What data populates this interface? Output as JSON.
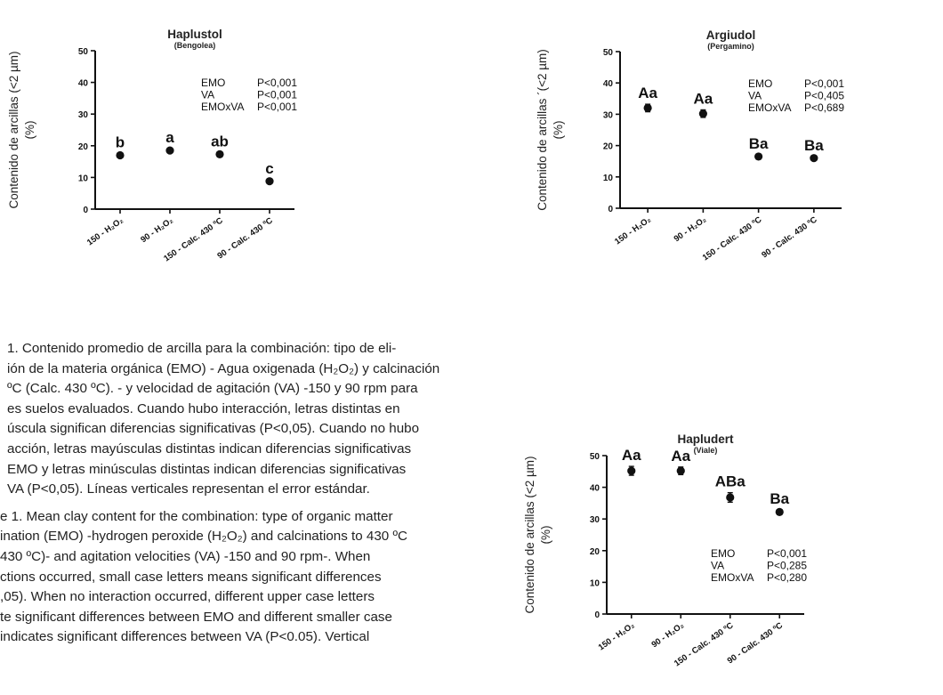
{
  "y_axis_label_line1": "Contenido de arcillas (<2 µm)",
  "y_axis_label_line1_alt": "Contenido de arcillas ´(<2 µm)",
  "y_axis_label_line2": "(%)",
  "caption": {
    "es_lines": [
      "1. Contenido promedio de arcilla para la combinación: tipo de eli-",
      "ión de la materia orgánica (EMO) - Agua oxigenada (H₂O₂) y calcinación",
      "ºC (Calc. 430 ºC). - y velocidad de agitación (VA) -150 y 90 rpm para",
      "es suelos evaluados. Cuando hubo interacción, letras distintas en",
      "úscula significan diferencias significativas (P<0,05). Cuando no hubo",
      "acción, letras mayúsculas distintas indican diferencias significativas",
      "EMO y letras minúsculas distintas indican diferencias significativas",
      "VA (P<0,05). Líneas verticales representan el error estándar."
    ],
    "en_lines": [
      "e 1. Mean clay content for the combination: type of organic matter",
      "ination (EMO) -hydrogen peroxide (H₂O₂) and calcinations to 430 ºC",
      "430 ºC)- and agitation velocities (VA) -150 and 90 rpm-. When",
      "ctions occurred, small case letters means significant differences",
      ",05). When no interaction occurred, different upper case letters",
      "te significant differences between EMO and different smaller case",
      "indicates significant differences between VA (P<0.05). Vertical"
    ]
  },
  "chart_data": [
    {
      "type": "scatter",
      "title": "Haplustol",
      "subtitle": "(Bengolea)",
      "categories": [
        "150 - H₂O₂",
        "90 - H₂O₂",
        "150 - Calc. 430 ºC",
        "90 - Calc. 430 ºC"
      ],
      "values": [
        17,
        18.5,
        17.3,
        8.8
      ],
      "errors": [
        0.6,
        0.6,
        0.6,
        0.5
      ],
      "point_labels": [
        "b",
        "a",
        "ab",
        "c"
      ],
      "ylim": [
        0,
        50
      ],
      "yticks": [
        0,
        10,
        20,
        30,
        40,
        50
      ],
      "stats": [
        [
          "EMO",
          "P<0,001"
        ],
        [
          "VA",
          "P<0,001"
        ],
        [
          "EMOxVA",
          "P<0,001"
        ]
      ]
    },
    {
      "type": "scatter",
      "title": "Argiudol",
      "subtitle": "(Pergamino)",
      "categories": [
        "150 - H₂O₂",
        "90 - H₂O₂",
        "150 - Calc. 430 ºC",
        "90 - Calc. 430 ºC"
      ],
      "values": [
        32,
        30.2,
        16.5,
        16
      ],
      "errors": [
        1.2,
        1.2,
        0.6,
        0.5
      ],
      "point_labels": [
        "Aa",
        "Aa",
        "Ba",
        "Ba"
      ],
      "ylim": [
        0,
        50
      ],
      "yticks": [
        "0",
        "10",
        "20",
        "30",
        "40",
        "50"
      ],
      "ytick_labels": [
        "0",
        "10",
        "20",
        "30",
        "40",
        "50"
      ],
      "stats": [
        [
          "EMO",
          "P<0,001"
        ],
        [
          "VA",
          "P<0,405"
        ],
        [
          "EMOxVA",
          "P<0,689"
        ]
      ]
    },
    {
      "type": "scatter",
      "title": "Hapludert",
      "subtitle": "(Viale)",
      "categories": [
        "150 - H₂O₂",
        "90 - H₂O₂",
        "150 - Calc. 430 ºC",
        "90 - Calc. 430 ºC"
      ],
      "values": [
        45.2,
        45.2,
        36.8,
        32.2
      ],
      "errors": [
        1.4,
        1.2,
        1.5,
        0.6
      ],
      "point_labels": [
        "Aa",
        "Aa",
        "ABa",
        "Ba"
      ],
      "ylim": [
        0,
        50
      ],
      "yticks": [
        0,
        10,
        20,
        30,
        40,
        50
      ],
      "stats": [
        [
          "EMO",
          "P<0,001"
        ],
        [
          "VA",
          "P<0,285"
        ],
        [
          "EMOxVA",
          "P<0,280"
        ]
      ]
    }
  ]
}
